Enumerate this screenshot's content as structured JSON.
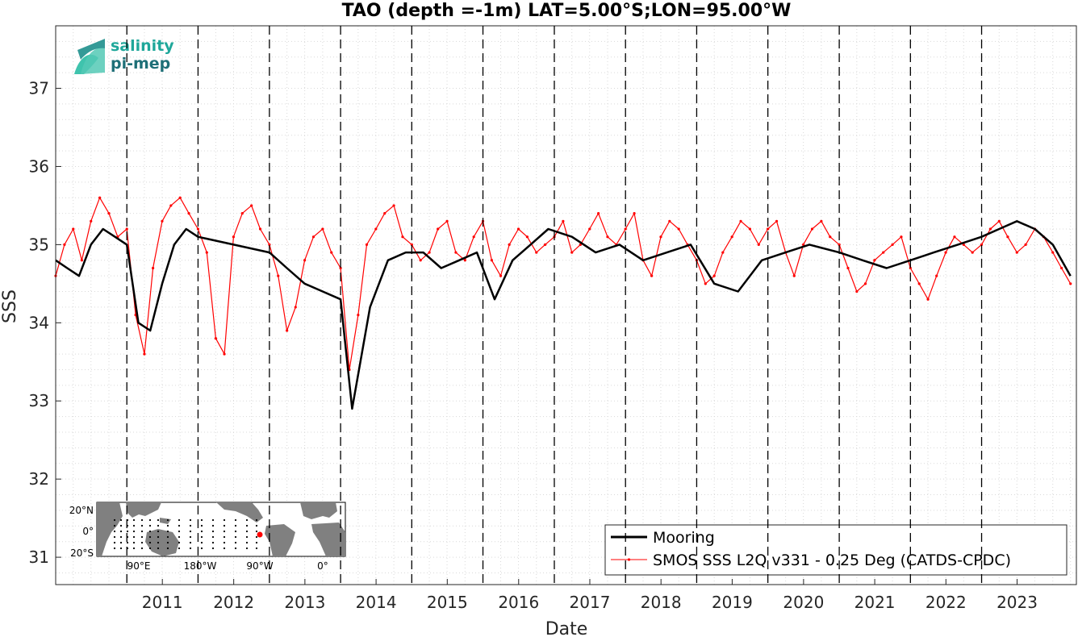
{
  "chart_data": {
    "type": "line",
    "title": "TAO (depth =-1m) LAT=5.00°S;LON=95.00°W",
    "xlabel": "Date",
    "ylabel": "SSS",
    "xlim": [
      "2010-01-01",
      "2024-05-01"
    ],
    "ylim": [
      30.65,
      37.8
    ],
    "x_ticks": [
      "2011",
      "2012",
      "2013",
      "2014",
      "2015",
      "2016",
      "2017",
      "2018",
      "2019",
      "2020",
      "2021",
      "2022",
      "2023"
    ],
    "y_ticks": [
      31,
      32,
      33,
      34,
      35,
      36,
      37
    ],
    "year_dividers": [
      "2011-01-01",
      "2012-01-01",
      "2013-01-01",
      "2014-01-01",
      "2015-01-01",
      "2016-01-01",
      "2017-01-01",
      "2018-01-01",
      "2019-01-01",
      "2020-01-01",
      "2021-01-01",
      "2022-01-01",
      "2023-01-01"
    ],
    "grid": "minor dotted",
    "legend_position": "bottom-right",
    "series": [
      {
        "name": "Mooring",
        "color": "#000000",
        "x": [
          "2010-01-01",
          "2010-03-01",
          "2010-05-01",
          "2010-07-01",
          "2010-09-01",
          "2010-11-01",
          "2011-01-01",
          "2011-03-01",
          "2011-05-01",
          "2011-07-01",
          "2011-09-01",
          "2011-11-01",
          "2012-01-01",
          "2013-01-01",
          "2013-04-01",
          "2013-07-01",
          "2013-10-01",
          "2014-01-01",
          "2014-03-01",
          "2014-06-01",
          "2014-09-01",
          "2014-12-01",
          "2015-03-01",
          "2015-06-01",
          "2015-09-01",
          "2015-12-01",
          "2016-03-01",
          "2016-06-01",
          "2016-09-01",
          "2016-12-01",
          "2017-04-01",
          "2017-08-01",
          "2017-12-01",
          "2018-04-01",
          "2018-08-01",
          "2018-12-01",
          "2019-04-01",
          "2019-08-01",
          "2019-12-01",
          "2020-04-01",
          "2020-08-01",
          "2021-01-01",
          "2021-05-01",
          "2021-09-01",
          "2022-01-01",
          "2022-05-01",
          "2022-09-01",
          "2023-01-01",
          "2023-04-01",
          "2023-07-01",
          "2023-10-01",
          "2024-01-01",
          "2024-04-01"
        ],
        "y": [
          34.8,
          34.7,
          34.6,
          35.0,
          35.2,
          35.1,
          35.0,
          34.0,
          33.9,
          34.5,
          35.0,
          35.2,
          35.1,
          34.9,
          34.7,
          34.5,
          34.4,
          34.3,
          32.9,
          34.2,
          34.8,
          34.9,
          34.9,
          34.7,
          34.8,
          34.9,
          34.3,
          34.8,
          35.0,
          35.2,
          35.1,
          34.9,
          35.0,
          34.8,
          34.9,
          35.0,
          34.5,
          34.4,
          34.8,
          34.9,
          35.0,
          34.9,
          34.8,
          34.7,
          34.8,
          34.9,
          35.0,
          35.1,
          35.2,
          35.3,
          35.2,
          35.0,
          34.6
        ]
      },
      {
        "name": "SMOS SSS L2Q v331 - 0.25 Deg (CATDS-CPDC)",
        "color": "#ff0000",
        "x": [
          "2010-01-01",
          "2010-02-15",
          "2010-04-01",
          "2010-05-15",
          "2010-07-01",
          "2010-08-15",
          "2010-10-01",
          "2010-11-15",
          "2011-01-01",
          "2011-02-15",
          "2011-04-01",
          "2011-05-15",
          "2011-07-01",
          "2011-08-15",
          "2011-10-01",
          "2011-11-15",
          "2012-01-01",
          "2012-02-15",
          "2012-04-01",
          "2012-05-15",
          "2012-07-01",
          "2012-08-15",
          "2012-10-01",
          "2012-11-15",
          "2013-01-01",
          "2013-02-15",
          "2013-04-01",
          "2013-05-15",
          "2013-07-01",
          "2013-08-15",
          "2013-10-01",
          "2013-11-15",
          "2014-01-01",
          "2014-02-15",
          "2014-04-01",
          "2014-05-15",
          "2014-07-01",
          "2014-08-15",
          "2014-10-01",
          "2014-11-15",
          "2015-01-01",
          "2015-02-15",
          "2015-04-01",
          "2015-05-15",
          "2015-07-01",
          "2015-08-15",
          "2015-10-01",
          "2015-11-15",
          "2016-01-01",
          "2016-02-15",
          "2016-04-01",
          "2016-05-15",
          "2016-07-01",
          "2016-08-15",
          "2016-10-01",
          "2016-11-15",
          "2017-01-01",
          "2017-02-15",
          "2017-04-01",
          "2017-05-15",
          "2017-07-01",
          "2017-08-15",
          "2017-10-01",
          "2017-11-15",
          "2018-01-01",
          "2018-02-15",
          "2018-04-01",
          "2018-05-15",
          "2018-07-01",
          "2018-08-15",
          "2018-10-01",
          "2018-11-15",
          "2019-01-01",
          "2019-02-15",
          "2019-04-01",
          "2019-05-15",
          "2019-07-01",
          "2019-08-15",
          "2019-10-01",
          "2019-11-15",
          "2020-01-01",
          "2020-02-15",
          "2020-04-01",
          "2020-05-15",
          "2020-07-01",
          "2020-08-15",
          "2020-10-01",
          "2020-11-15",
          "2021-01-01",
          "2021-02-15",
          "2021-04-01",
          "2021-05-15",
          "2021-07-01",
          "2021-08-15",
          "2021-10-01",
          "2021-11-15",
          "2022-01-01",
          "2022-02-15",
          "2022-04-01",
          "2022-05-15",
          "2022-07-01",
          "2022-08-15",
          "2022-10-01",
          "2022-11-15",
          "2023-01-01",
          "2023-02-15",
          "2023-04-01",
          "2023-05-15",
          "2023-07-01",
          "2023-08-15",
          "2023-10-01",
          "2023-11-15",
          "2024-01-01",
          "2024-02-15",
          "2024-04-01"
        ],
        "y": [
          34.6,
          35.0,
          35.2,
          34.8,
          35.3,
          35.6,
          35.4,
          35.1,
          35.2,
          34.1,
          33.6,
          34.7,
          35.3,
          35.5,
          35.6,
          35.4,
          35.2,
          34.9,
          33.8,
          33.6,
          35.1,
          35.4,
          35.5,
          35.2,
          35.0,
          34.6,
          33.9,
          34.2,
          34.8,
          35.1,
          35.2,
          34.9,
          34.7,
          33.4,
          34.1,
          35.0,
          35.2,
          35.4,
          35.5,
          35.1,
          35.0,
          34.8,
          34.9,
          35.2,
          35.3,
          34.9,
          34.8,
          35.1,
          35.3,
          34.8,
          34.6,
          35.0,
          35.2,
          35.1,
          34.9,
          35.0,
          35.1,
          35.3,
          34.9,
          35.0,
          35.2,
          35.4,
          35.1,
          35.0,
          35.2,
          35.4,
          34.8,
          34.6,
          35.1,
          35.3,
          35.2,
          35.0,
          34.8,
          34.5,
          34.6,
          34.9,
          35.1,
          35.3,
          35.2,
          35.0,
          35.2,
          35.3,
          34.9,
          34.6,
          35.0,
          35.2,
          35.3,
          35.1,
          35.0,
          34.7,
          34.4,
          34.5,
          34.8,
          34.9,
          35.0,
          35.1,
          34.7,
          34.5,
          34.3,
          34.6,
          34.9,
          35.1,
          35.0,
          34.9,
          35.0,
          35.2,
          35.3,
          35.1,
          34.9,
          35.0,
          35.2,
          35.1,
          34.9,
          34.7,
          34.5
        ]
      }
    ]
  },
  "logo": {
    "line1": "salinity",
    "line2": "pi-mep"
  },
  "inset_map": {
    "y_labels": [
      "20°N",
      "0°",
      "20°S"
    ],
    "x_labels": [
      "90°E",
      "180°W",
      "90°W",
      "0°"
    ],
    "station_marker_color": "#ff0000"
  }
}
